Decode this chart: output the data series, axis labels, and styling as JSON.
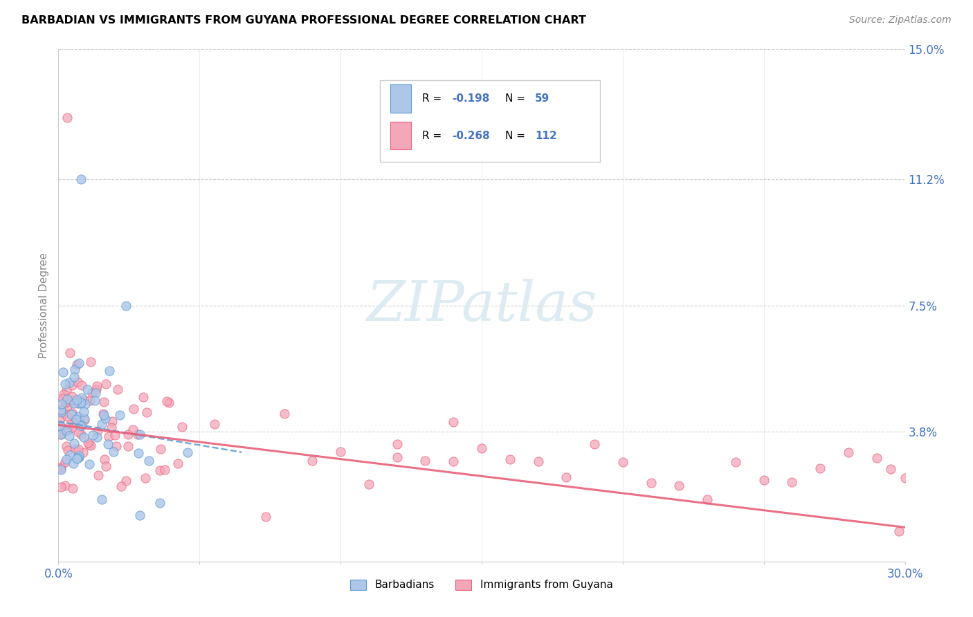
{
  "title": "BARBADIAN VS IMMIGRANTS FROM GUYANA PROFESSIONAL DEGREE CORRELATION CHART",
  "source": "Source: ZipAtlas.com",
  "ylabel": "Professional Degree",
  "xlim": [
    0.0,
    0.3
  ],
  "ylim": [
    0.0,
    0.15
  ],
  "ytick_vals": [
    0.038,
    0.075,
    0.112,
    0.15
  ],
  "ytick_labels": [
    "3.8%",
    "7.5%",
    "11.2%",
    "15.0%"
  ],
  "xtick_vals": [
    0.0,
    0.05,
    0.1,
    0.15,
    0.2,
    0.25,
    0.3
  ],
  "xtick_labels": [
    "0.0%",
    "",
    "",
    "",
    "",
    "",
    "30.0%"
  ],
  "watermark": "ZIPatlas",
  "r1": "-0.198",
  "n1": "59",
  "r2": "-0.268",
  "n2": "112",
  "color_blue_fill": "#aec6e8",
  "color_blue_edge": "#5b9bd5",
  "color_pink_fill": "#f4a7b9",
  "color_pink_edge": "#e8607a",
  "color_trend_blue": "#5b9bd5",
  "color_trend_pink": "#e8607a",
  "color_axis_label": "#4472C4",
  "color_grid": "#d0d0d0"
}
